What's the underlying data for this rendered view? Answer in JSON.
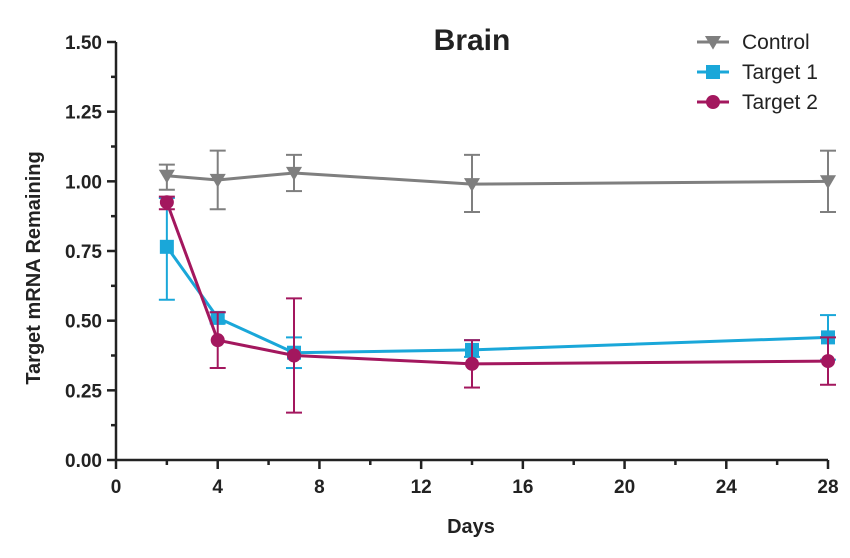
{
  "chart_data": {
    "type": "line",
    "title": "Brain",
    "xlabel": "Days",
    "ylabel": "Target mRNA Remaining",
    "xlim": [
      0,
      28
    ],
    "ylim": [
      0,
      1.5
    ],
    "xticks": [
      "0",
      "4",
      "8",
      "12",
      "16",
      "20",
      "24",
      "28"
    ],
    "yticks": [
      "0.00",
      "0.25",
      "0.50",
      "0.75",
      "1.00",
      "1.25",
      "1.50"
    ],
    "grid": false,
    "legend_position": "top-right",
    "series": [
      {
        "name": "Control",
        "color": "#7f7f7f",
        "marker": "triangle-down",
        "x": [
          2,
          4,
          7,
          14,
          28
        ],
        "y": [
          1.02,
          1.005,
          1.03,
          0.99,
          1.0
        ],
        "err_low": [
          0.97,
          0.9,
          0.965,
          0.89,
          0.89
        ],
        "err_high": [
          1.06,
          1.11,
          1.095,
          1.095,
          1.11
        ]
      },
      {
        "name": "Target 1",
        "color": "#1aa7d9",
        "marker": "square",
        "x": [
          2,
          4,
          7,
          14,
          28
        ],
        "y": [
          0.765,
          0.51,
          0.385,
          0.395,
          0.44
        ],
        "err_low": [
          0.575,
          0.49,
          0.33,
          0.37,
          0.36
        ],
        "err_high": [
          0.94,
          0.53,
          0.44,
          0.43,
          0.52
        ]
      },
      {
        "name": "Target 2",
        "color": "#a3175e",
        "marker": "circle",
        "x": [
          2,
          4,
          7,
          14,
          28
        ],
        "y": [
          0.925,
          0.43,
          0.375,
          0.345,
          0.355
        ],
        "err_low": [
          0.9,
          0.33,
          0.17,
          0.26,
          0.27
        ],
        "err_high": [
          0.945,
          0.53,
          0.58,
          0.43,
          0.44
        ]
      }
    ]
  }
}
